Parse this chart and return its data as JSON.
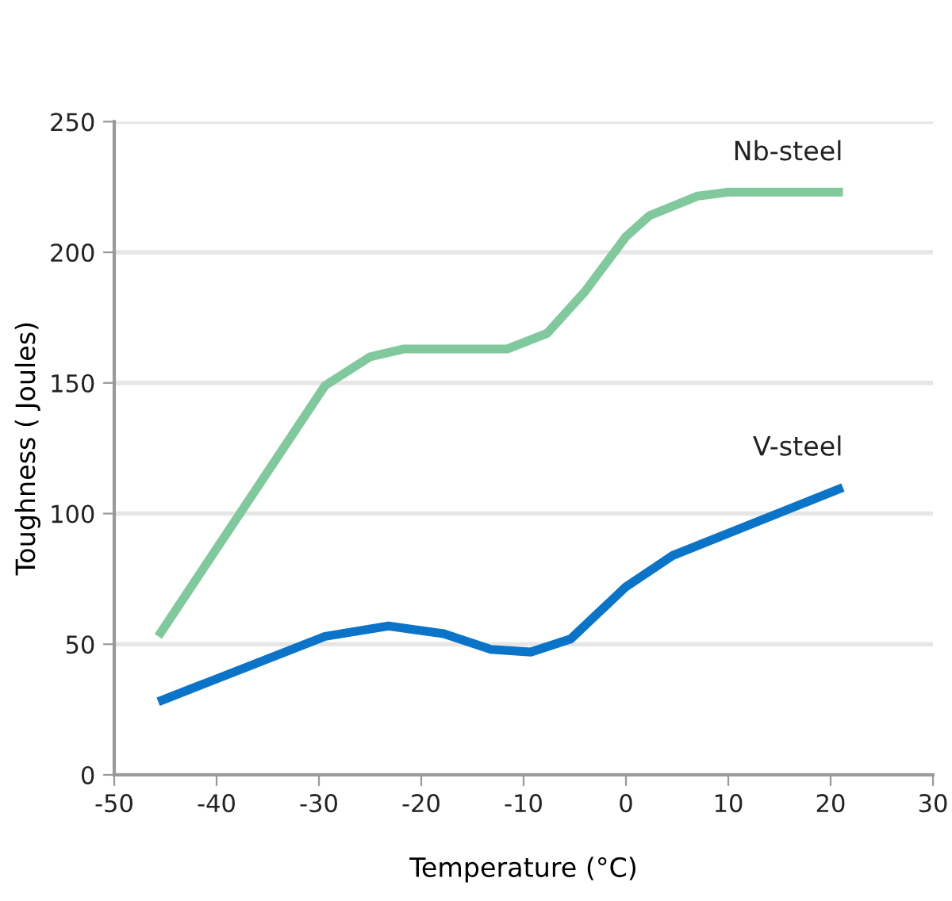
{
  "chart_data": {
    "type": "line",
    "xlabel": "Temperature (°C)",
    "ylabel": "Toughness ( Joules)",
    "xlim": [
      -50,
      30
    ],
    "xticks": [
      -50,
      -40,
      -30,
      -20,
      -10,
      0,
      10,
      20,
      30
    ],
    "ylim": [
      0,
      250
    ],
    "yticks": [
      0,
      50,
      100,
      150,
      200,
      250
    ],
    "grid": "y",
    "legend": false,
    "series": [
      {
        "name": "Nb-steel",
        "color": "#80c99c",
        "x": [
          -45.7,
          -29.4,
          -25,
          -21.7,
          -11.6,
          -7.7,
          -4,
          0,
          2.3,
          7,
          10,
          21.2
        ],
        "values": [
          53,
          149,
          160,
          163,
          163,
          169,
          185,
          206,
          214,
          221.5,
          223,
          223
        ]
      },
      {
        "name": "V-steel",
        "color": "#0a74c9",
        "x": [
          -45.7,
          -29.4,
          -23.2,
          -17.8,
          -13.2,
          -9.3,
          -5.4,
          0,
          4.6,
          21.2
        ],
        "values": [
          28,
          53,
          57,
          54,
          48,
          47,
          52,
          72,
          84,
          110
        ]
      }
    ]
  }
}
